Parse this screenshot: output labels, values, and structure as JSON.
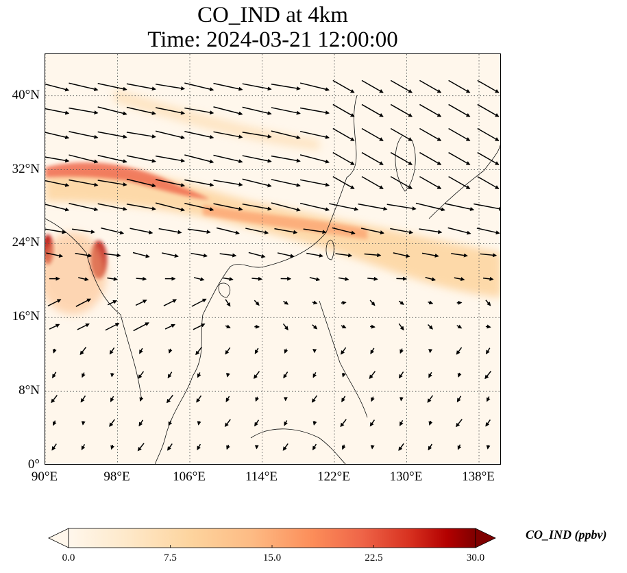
{
  "title": {
    "line1": "CO_IND at 4km",
    "line2": "Time: 2024-03-21 12:00:00"
  },
  "map": {
    "lon_range": [
      90,
      140.5
    ],
    "lat_range": [
      0,
      44.5
    ],
    "x_ticks": [
      "90°E",
      "98°E",
      "106°E",
      "114°E",
      "122°E",
      "130°E",
      "138°E"
    ],
    "x_tick_values": [
      90,
      98,
      106,
      114,
      122,
      130,
      138
    ],
    "y_ticks": [
      "0°",
      "8°N",
      "16°N",
      "24°N",
      "32°N",
      "40°N"
    ],
    "y_tick_values": [
      0,
      8,
      16,
      24,
      32,
      40
    ],
    "gridlines": true,
    "background_color": "#fff7ec",
    "plume_color_low": "#fdd49e",
    "plume_color_high": "#b30000",
    "wind_vectors": "uniform field of black arrows, westerly in north, weak in south"
  },
  "colorbar": {
    "label": "CO_IND (ppbv)",
    "ticks": [
      "0.0",
      "7.5",
      "15.0",
      "22.5",
      "30.0"
    ],
    "tick_values": [
      0.0,
      7.5,
      15.0,
      22.5,
      30.0
    ],
    "range": [
      0,
      30
    ],
    "extend": "both",
    "colormap": "OrRd"
  }
}
